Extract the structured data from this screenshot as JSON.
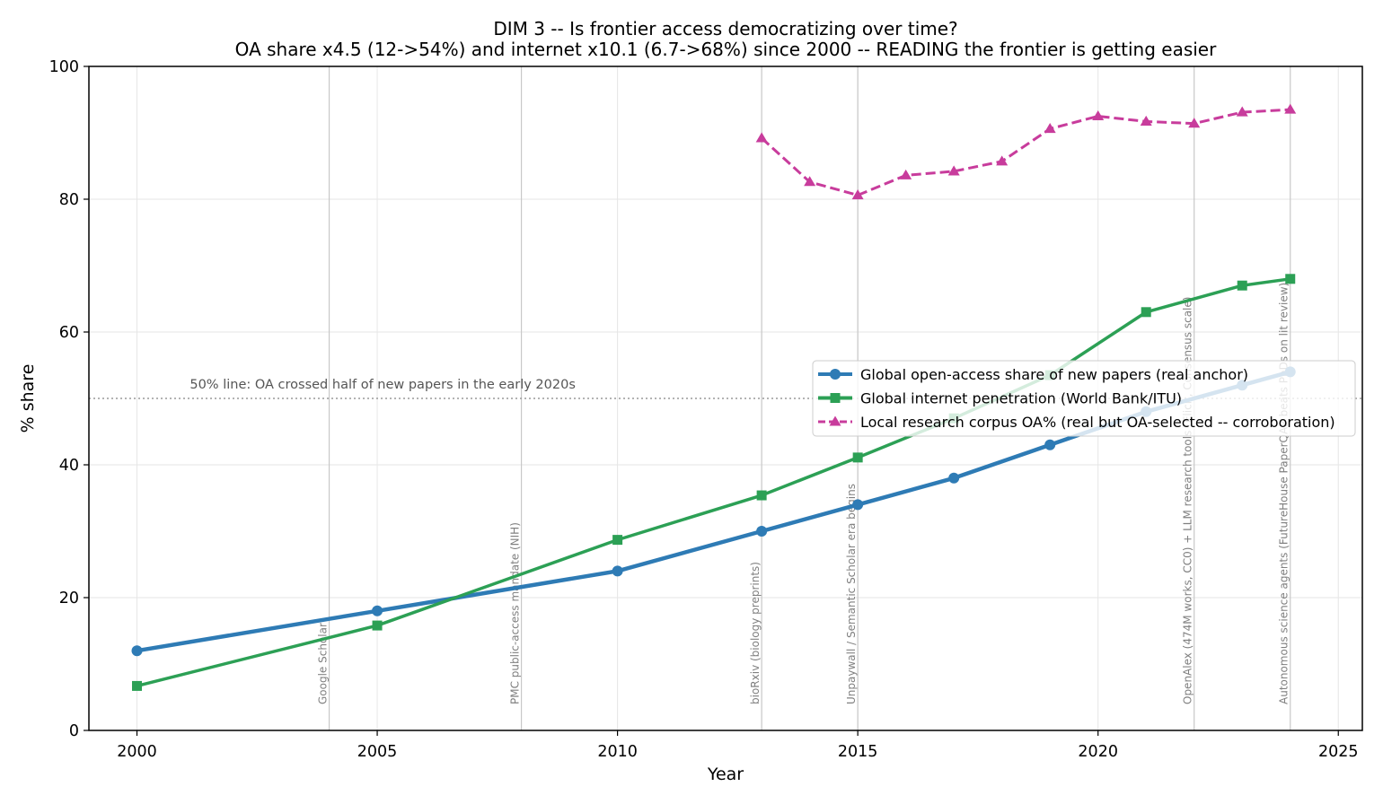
{
  "chart_data": {
    "type": "line",
    "title": "DIM 3 -- Is frontier access democratizing over time?",
    "subtitle": "OA share x4.5 (12->54%) and internet x10.1 (6.7->68%) since 2000 -- READING the frontier is getting easier",
    "xlabel": "Year",
    "ylabel": "% share",
    "xlim": [
      1999,
      2025.5
    ],
    "ylim": [
      0,
      100
    ],
    "xticks": [
      2000,
      2005,
      2010,
      2015,
      2020,
      2025
    ],
    "yticks": [
      0,
      20,
      40,
      60,
      80,
      100
    ],
    "grid": true,
    "legend_position": "right",
    "reference_line": {
      "y": 50,
      "label": "50% line: OA crossed half of new papers in the early 2020s"
    },
    "events": [
      {
        "x": 2004,
        "label": "Google Scholar"
      },
      {
        "x": 2008,
        "label": "PMC public-access mandate (NIH)"
      },
      {
        "x": 2013,
        "label": "bioRxiv (biology preprints)"
      },
      {
        "x": 2015,
        "label": "Unpaywall / Semantic Scholar era begins"
      },
      {
        "x": 2022,
        "label": "OpenAlex (474M works, CC0) + LLM research tools (Elicit, Consensus scale)"
      },
      {
        "x": 2024,
        "label": "Autonomous science agents (FutureHouse PaperQA2 beats PhDs on lit review)"
      }
    ],
    "series": [
      {
        "name": "Global open-access share of new papers (real anchor)",
        "color": "#2e7bb5",
        "marker": "circle",
        "style": "solid",
        "x": [
          2000,
          2005,
          2010,
          2013,
          2015,
          2017,
          2019,
          2021,
          2023,
          2024
        ],
        "y": [
          12,
          18,
          24,
          30,
          34,
          38,
          43,
          48,
          52,
          54
        ]
      },
      {
        "name": "Global internet penetration (World Bank/ITU)",
        "color": "#2ca055",
        "marker": "square",
        "style": "solid",
        "x": [
          2000,
          2005,
          2010,
          2013,
          2015,
          2017,
          2019,
          2021,
          2023,
          2024
        ],
        "y": [
          6.7,
          15.8,
          28.7,
          35.4,
          41.1,
          47,
          53.5,
          63,
          67,
          68
        ]
      },
      {
        "name": "Local research corpus OA% (real but OA-selected -- corroboration)",
        "color": "#c83c9c",
        "marker": "triangle",
        "style": "dashed",
        "x": [
          2013,
          2014,
          2015,
          2016,
          2017,
          2018,
          2019,
          2020,
          2021,
          2022,
          2023,
          2024
        ],
        "y": [
          89.2,
          82.6,
          80.6,
          83.6,
          84.2,
          85.7,
          90.6,
          92.5,
          91.7,
          91.4,
          93.1,
          93.5
        ]
      }
    ]
  }
}
